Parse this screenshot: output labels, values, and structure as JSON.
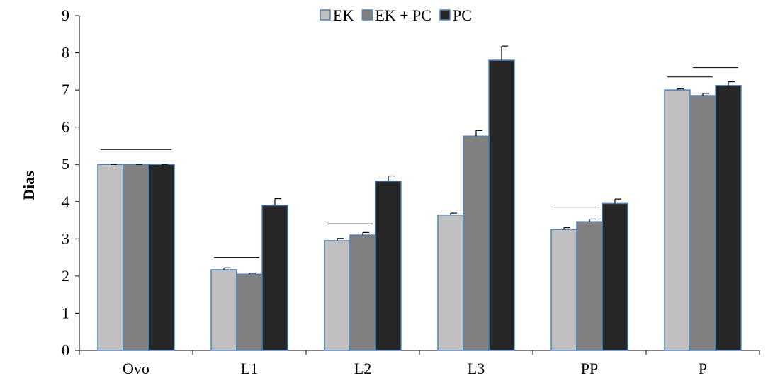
{
  "chart_data": {
    "type": "bar",
    "title": "",
    "xlabel": "",
    "ylabel": "Dias",
    "ylim": [
      0,
      9
    ],
    "yticks": [
      0,
      1,
      2,
      3,
      4,
      5,
      6,
      7,
      8,
      9
    ],
    "grid": false,
    "legend_position": "top",
    "categories": [
      "Ovo",
      "L1",
      "L2",
      "L3",
      "PP",
      "P"
    ],
    "series": [
      {
        "name": "EK",
        "color": "#c0c0c0",
        "values": [
          5.0,
          2.17,
          2.95,
          3.64,
          3.25,
          7.0
        ],
        "errors": [
          0.0,
          0.05,
          0.06,
          0.05,
          0.05,
          0.03
        ]
      },
      {
        "name": "EK + PC",
        "color": "#808080",
        "values": [
          5.0,
          2.05,
          3.1,
          5.76,
          3.46,
          6.85
        ],
        "errors": [
          0.0,
          0.03,
          0.07,
          0.15,
          0.07,
          0.06
        ]
      },
      {
        "name": "PC",
        "color": "#262626",
        "values": [
          5.0,
          3.9,
          4.55,
          7.8,
          3.95,
          7.12
        ],
        "errors": [
          0.0,
          0.18,
          0.14,
          0.38,
          0.12,
          0.1
        ]
      }
    ],
    "bar_border_color": "#4f81bd",
    "significance_lines": [
      {
        "category": "Ovo",
        "from_series": 0,
        "to_series": 2,
        "y": 5.4
      },
      {
        "category": "L1",
        "from_series": 0,
        "to_series": 1,
        "y": 2.5
      },
      {
        "category": "L2",
        "from_series": 0,
        "to_series": 1,
        "y": 3.4
      },
      {
        "category": "PP",
        "from_series": 0,
        "to_series": 1,
        "y": 3.85
      },
      {
        "category": "P",
        "from_series": 0,
        "to_series": 1,
        "y": 7.35
      },
      {
        "category": "P",
        "from_series": 1,
        "to_series": 2,
        "y": 7.6
      }
    ]
  }
}
